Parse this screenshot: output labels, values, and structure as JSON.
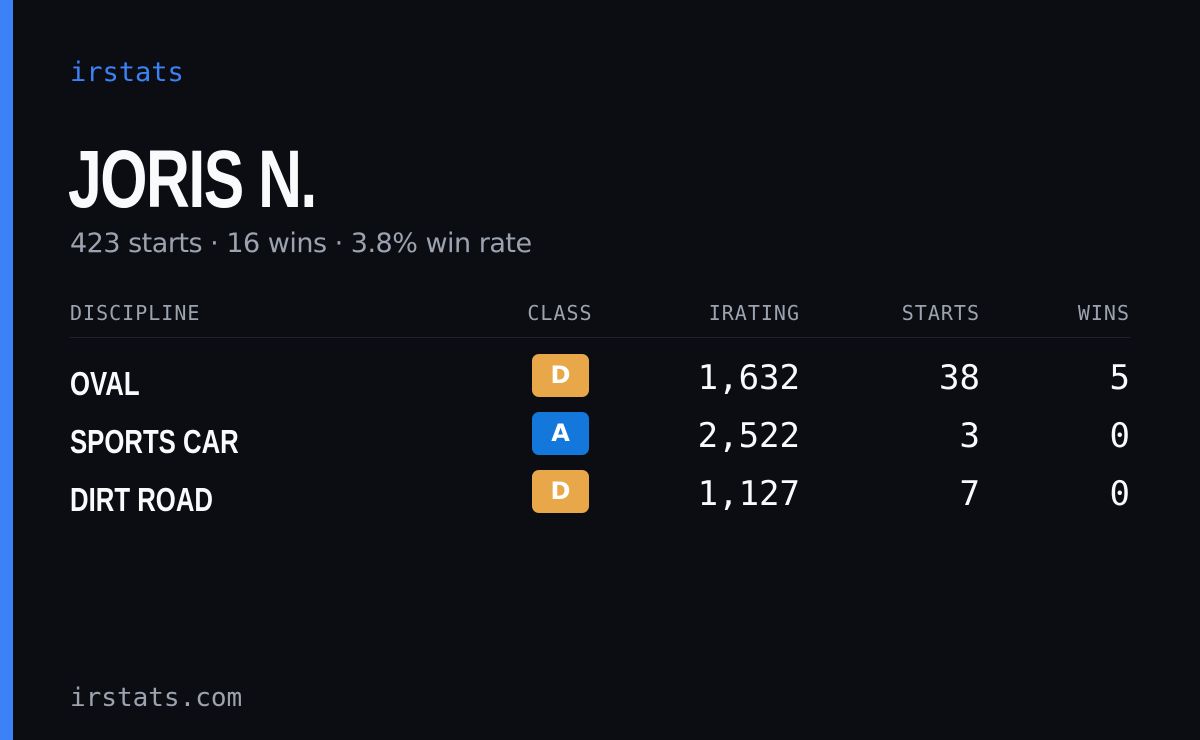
{
  "colors": {
    "background": "#0b0d13",
    "accent": "#3b82f6",
    "muted_text": "#9ca3af",
    "class_d": "#e8a84a",
    "class_a": "#1477db"
  },
  "brand": "irstats",
  "player": {
    "name": "JORIS N.",
    "summary": "423 starts · 16 wins · 3.8% win rate"
  },
  "table": {
    "headers": {
      "discipline": "DISCIPLINE",
      "class": "CLASS",
      "irating": "IRATING",
      "starts": "STARTS",
      "wins": "WINS"
    },
    "rows": [
      {
        "discipline": "OVAL",
        "class": "D",
        "class_color": "#e8a84a",
        "irating": "1,632",
        "starts": "38",
        "wins": "5"
      },
      {
        "discipline": "SPORTS CAR",
        "class": "A",
        "class_color": "#1477db",
        "irating": "2,522",
        "starts": "3",
        "wins": "0"
      },
      {
        "discipline": "DIRT ROAD",
        "class": "D",
        "class_color": "#e8a84a",
        "irating": "1,127",
        "starts": "7",
        "wins": "0"
      }
    ]
  },
  "footer": "irstats.com"
}
